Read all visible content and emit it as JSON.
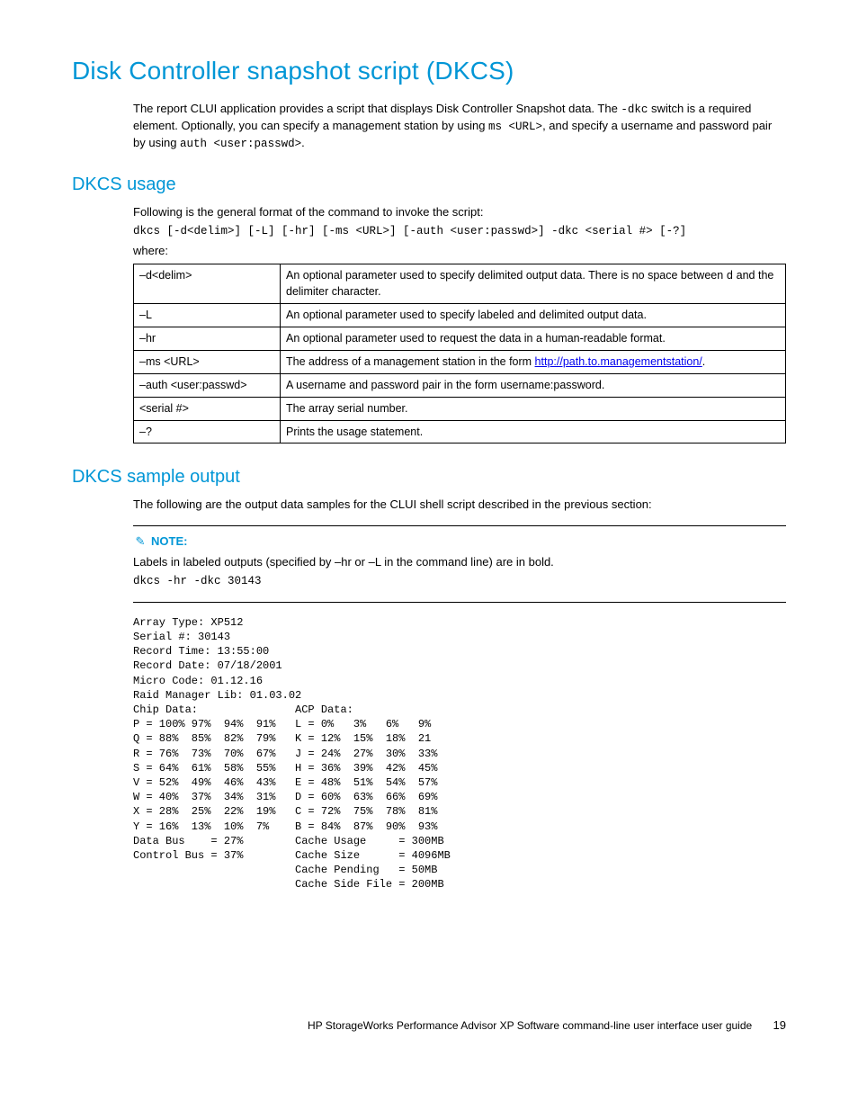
{
  "title": "Disk Controller snapshot script (DKCS)",
  "intro_pre": "The report CLUI application provides a script that displays Disk Controller Snapshot data. The ",
  "intro_code1": "-dkc",
  "intro_mid1": " switch is a required element. Optionally, you can specify a management station by using ",
  "intro_code2": "ms <URL>",
  "intro_mid2": ", and specify a username and password pair by using ",
  "intro_code3": "auth <user:passwd>",
  "intro_post": ".",
  "usage_heading": "DKCS usage",
  "usage_intro": "Following is the general format of the command to invoke the script:",
  "usage_cmd": "dkcs [-d<delim>] [-L] [-hr] [-ms <URL>] [-auth <user:passwd>] -dkc <serial #> [-?]",
  "usage_where": "where:",
  "params": [
    {
      "opt": "–d<delim>",
      "desc_pre": "An optional parameter used to specify delimited output data. There is no space between ",
      "desc_code": "d",
      "desc_post": " and the delimiter character."
    },
    {
      "opt": "–L",
      "desc_pre": "An optional parameter used to specify labeled and delimited output data.",
      "desc_code": "",
      "desc_post": ""
    },
    {
      "opt": "–hr",
      "desc_pre": "An optional parameter used to request the data in a human-readable format.",
      "desc_code": "",
      "desc_post": ""
    },
    {
      "opt": "–ms <URL>",
      "desc_pre": "The address of a management station in the form ",
      "desc_link": "http://path.to.managementstation/",
      "desc_post": "."
    },
    {
      "opt": "–auth <user:passwd>",
      "desc_pre": "A username and password pair in the form username:password.",
      "desc_code": "",
      "desc_post": ""
    },
    {
      "opt": "<serial #>",
      "desc_pre": "The array serial number.",
      "desc_code": "",
      "desc_post": ""
    },
    {
      "opt": "–?",
      "desc_pre": "Prints the usage statement.",
      "desc_code": "",
      "desc_post": ""
    }
  ],
  "sample_heading": "DKCS sample output",
  "sample_intro": "The following are the output data samples for the CLUI shell script described in the previous section:",
  "note_label": "NOTE:",
  "note_text": "Labels in labeled outputs (specified by –hr or –L in the command line) are in bold.",
  "note_cmd": "dkcs -hr -dkc 30143",
  "output": "Array Type: XP512\nSerial #: 30143\nRecord Time: 13:55:00\nRecord Date: 07/18/2001\nMicro Code: 01.12.16\nRaid Manager Lib: 01.03.02\nChip Data:               ACP Data:\nP = 100% 97%  94%  91%   L = 0%   3%   6%   9%\nQ = 88%  85%  82%  79%   K = 12%  15%  18%  21\nR = 76%  73%  70%  67%   J = 24%  27%  30%  33%\nS = 64%  61%  58%  55%   H = 36%  39%  42%  45%\nV = 52%  49%  46%  43%   E = 48%  51%  54%  57%\nW = 40%  37%  34%  31%   D = 60%  63%  66%  69%\nX = 28%  25%  22%  19%   C = 72%  75%  78%  81%\nY = 16%  13%  10%  7%    B = 84%  87%  90%  93%\nData Bus    = 27%        Cache Usage     = 300MB\nControl Bus = 37%        Cache Size      = 4096MB\n                         Cache Pending   = 50MB\n                         Cache Side File = 200MB",
  "footer_text": "HP StorageWorks Performance Advisor XP Software command-line user interface user guide",
  "footer_page": "19"
}
